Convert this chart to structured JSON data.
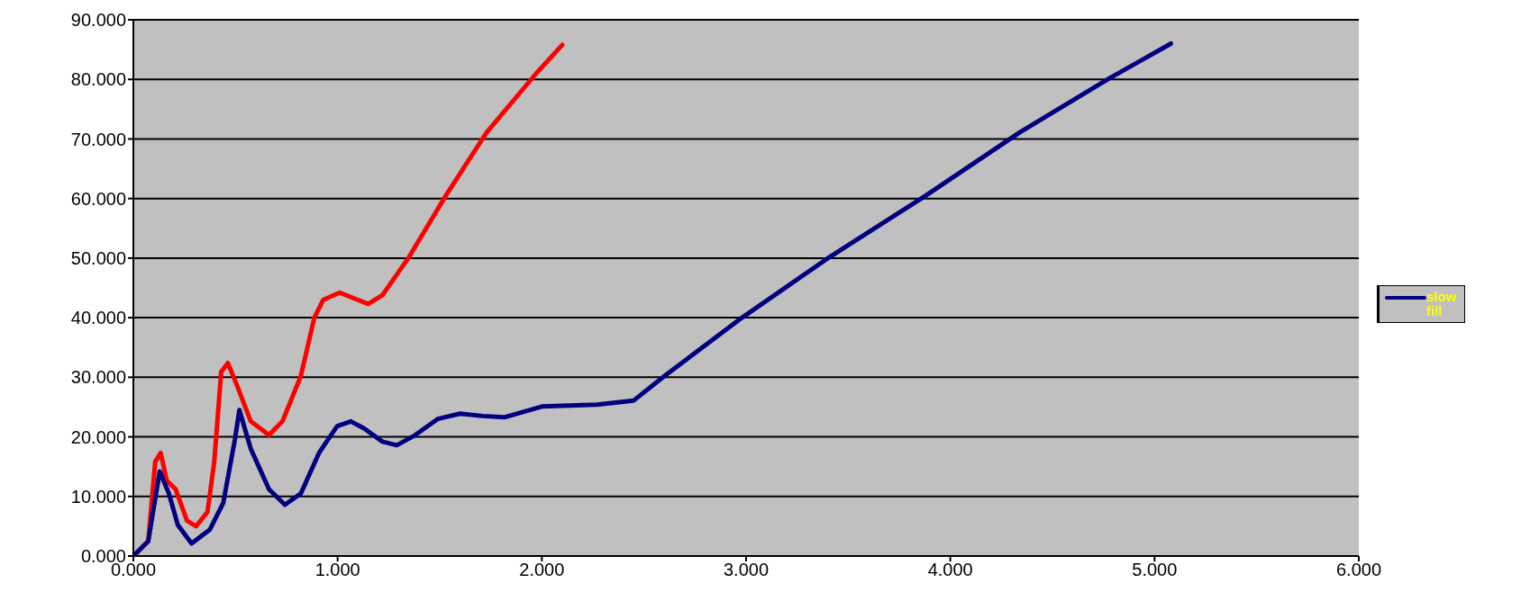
{
  "chart_data": {
    "type": "line",
    "series": [
      {
        "color": "#ff0000",
        "x": [
          0,
          0.073,
          0.107,
          0.134,
          0.163,
          0.207,
          0.263,
          0.307,
          0.363,
          0.396,
          0.43,
          0.463,
          0.508,
          0.575,
          0.664,
          0.73,
          0.82,
          0.886,
          0.93,
          1.01,
          1.15,
          1.22,
          1.35,
          1.53,
          1.73,
          1.97,
          2.1
        ],
        "values": [
          0,
          2.5,
          15.8,
          17.3,
          12.7,
          11.2,
          5.9,
          5.0,
          7.4,
          15.8,
          30.9,
          32.4,
          28.6,
          22.6,
          20.3,
          22.6,
          30.2,
          40,
          43,
          44.2,
          42.3,
          43.8,
          50.2,
          60.5,
          71.1,
          80.9,
          85.8
        ]
      },
      {
        "name": "slow fill",
        "color": "#000080",
        "x": [
          0,
          0.073,
          0.129,
          0.174,
          0.218,
          0.285,
          0.374,
          0.44,
          0.497,
          0.519,
          0.575,
          0.664,
          0.742,
          0.82,
          0.909,
          0.998,
          1.065,
          1.13,
          1.22,
          1.29,
          1.38,
          1.49,
          1.6,
          1.71,
          1.82,
          2.0,
          2.27,
          2.45,
          2.6,
          2.98,
          3.41,
          3.88,
          4.34,
          4.78,
          5.08
        ],
        "values": [
          0,
          2.5,
          14.2,
          10.5,
          5.2,
          2.1,
          4.4,
          8.9,
          19.5,
          24.5,
          18,
          11.2,
          8.6,
          10.5,
          17.3,
          21.8,
          22.6,
          21.4,
          19.2,
          18.6,
          20.3,
          23,
          23.9,
          23.5,
          23.3,
          25.1,
          25.4,
          26.1,
          30.2,
          40,
          50.2,
          60.5,
          71.1,
          80.2,
          86.0
        ]
      }
    ],
    "xlim": [
      0,
      6
    ],
    "xticks": [
      {
        "value": 0,
        "label": "0.000"
      },
      {
        "value": 1,
        "label": "1.000"
      },
      {
        "value": 2,
        "label": "2.000"
      },
      {
        "value": 3,
        "label": "3.000"
      },
      {
        "value": 4,
        "label": "4.000"
      },
      {
        "value": 5,
        "label": "5.000"
      },
      {
        "value": 6,
        "label": "6.000"
      }
    ],
    "ylim": [
      0,
      90
    ],
    "yticks": [
      {
        "value": 0,
        "label": "0.000"
      },
      {
        "value": 10,
        "label": "10.000"
      },
      {
        "value": 20,
        "label": "20.000"
      },
      {
        "value": 30,
        "label": "30.000"
      },
      {
        "value": 40,
        "label": "40.000"
      },
      {
        "value": 50,
        "label": "50.000"
      },
      {
        "value": 60,
        "label": "60.000"
      },
      {
        "value": 70,
        "label": "70.000"
      },
      {
        "value": 80,
        "label": "80.000"
      },
      {
        "value": 90,
        "label": "90.000"
      }
    ],
    "grid": "y",
    "legend": "right",
    "marker": "none",
    "line_style": "solid"
  }
}
